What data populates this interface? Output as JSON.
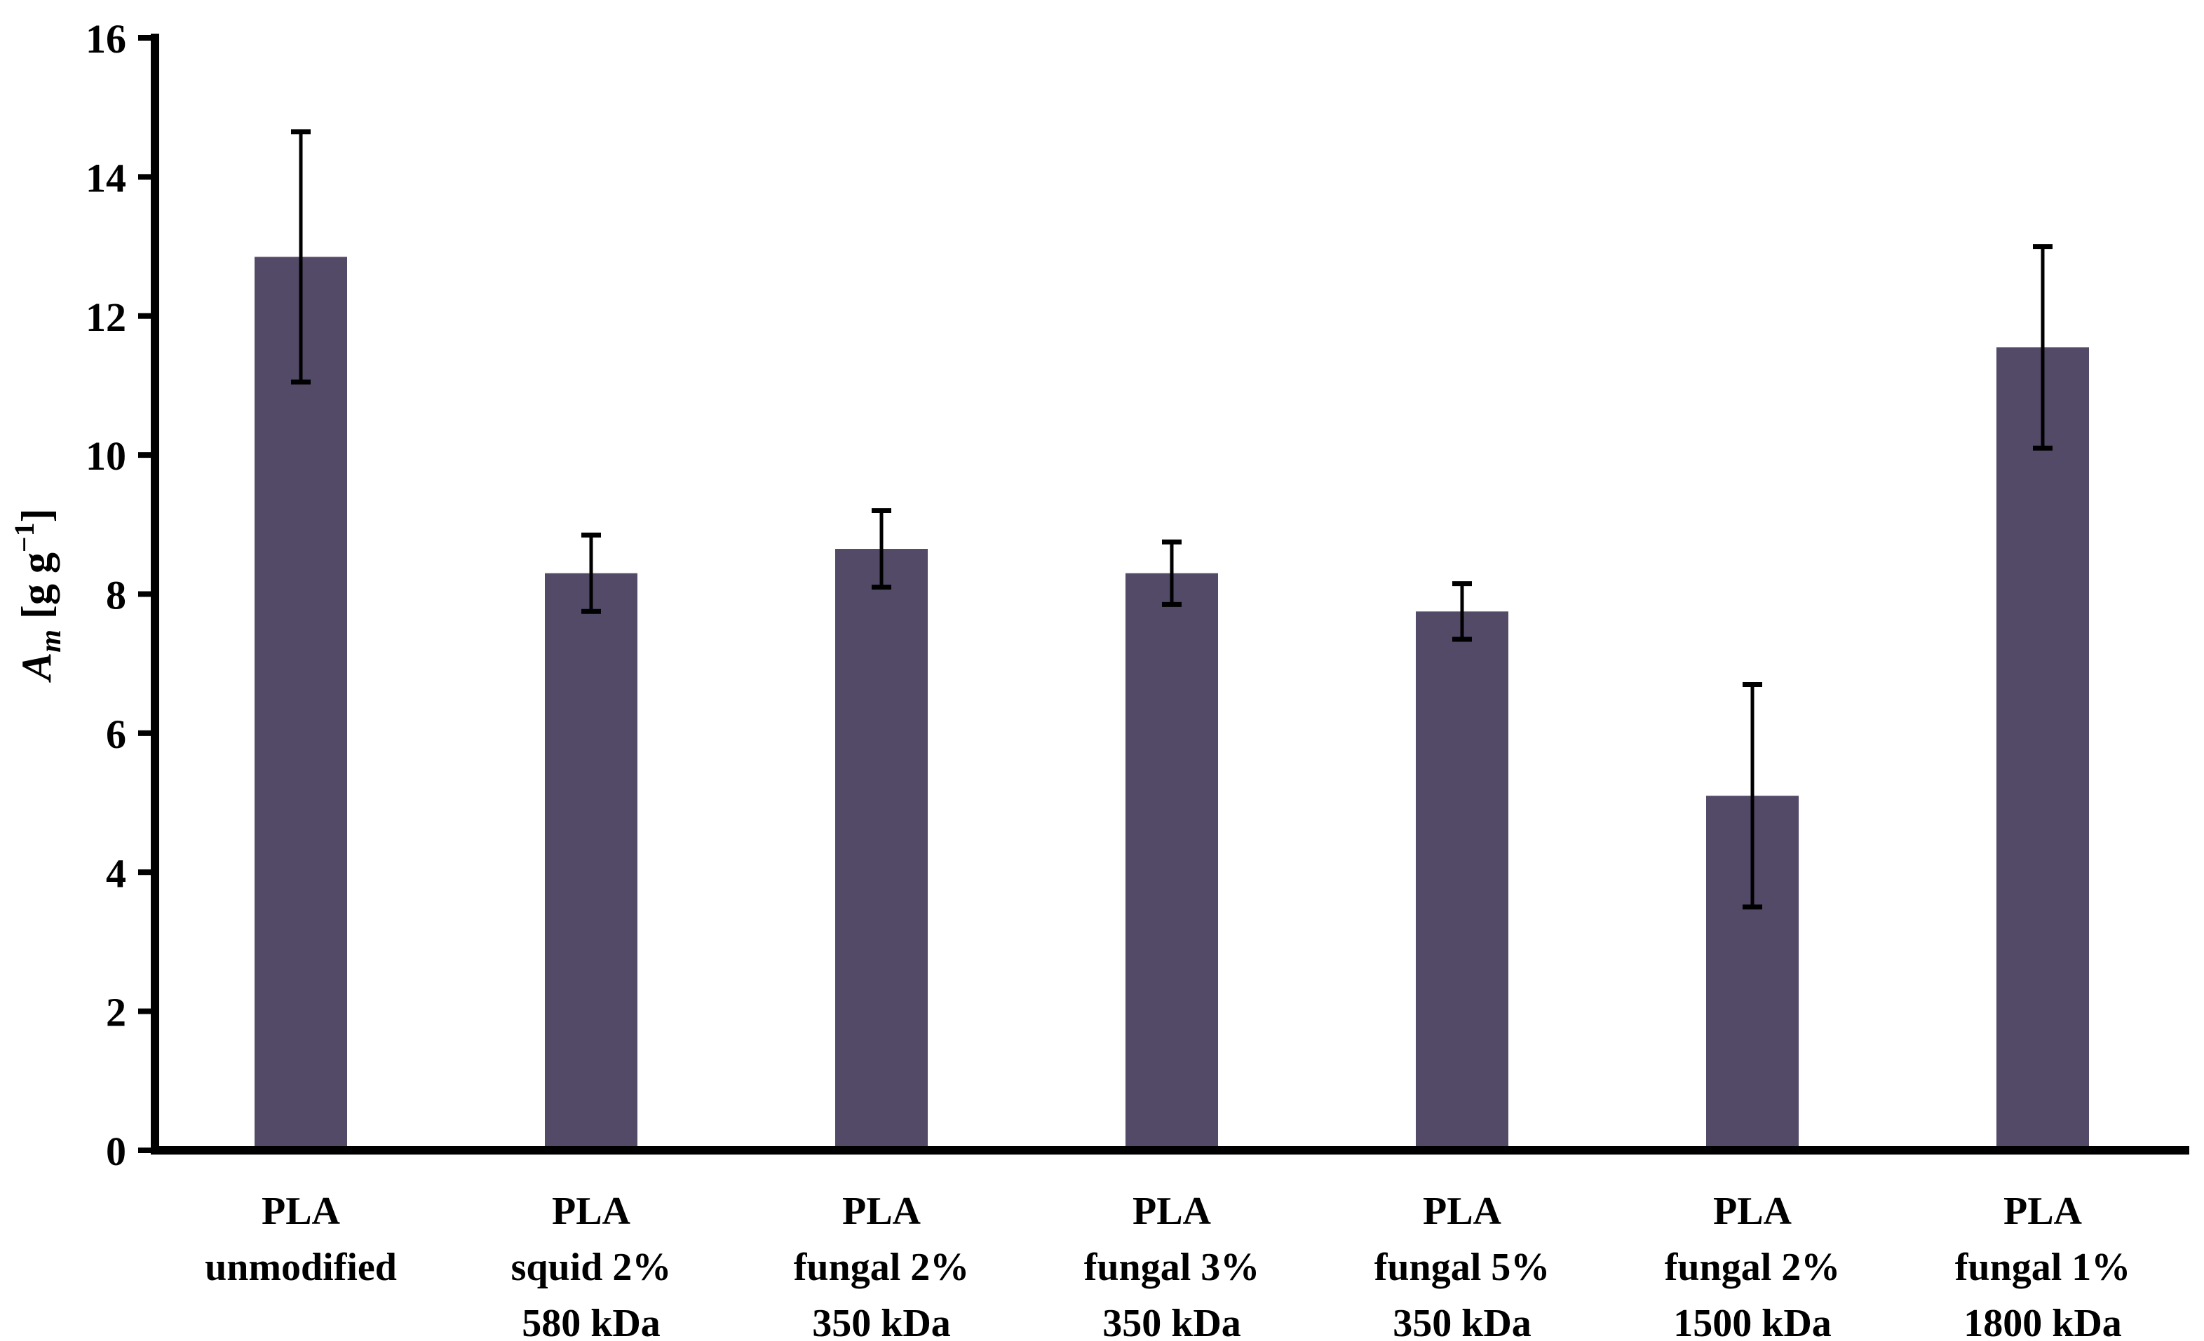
{
  "chart_data": {
    "type": "bar",
    "title": "",
    "xlabel": "",
    "ylabel": {
      "plain": "Am [g g-1]",
      "symbol": "A",
      "symbol_sub": "m",
      "unit_prefix": " [g g",
      "unit_sup": "−1",
      "unit_suffix": "]"
    },
    "ylim": [
      0,
      16
    ],
    "yticks": [
      0,
      2,
      4,
      6,
      8,
      10,
      12,
      14,
      16
    ],
    "grid": false,
    "legend": "none",
    "bar_color": "#534A68",
    "axis_color": "#000000",
    "error_bar_color": "#000000",
    "categories": [
      {
        "label_lines": [
          "PLA",
          "unmodified"
        ]
      },
      {
        "label_lines": [
          "PLA",
          "squid 2%",
          "580 kDa"
        ]
      },
      {
        "label_lines": [
          "PLA",
          "fungal 2%",
          "350 kDa"
        ]
      },
      {
        "label_lines": [
          "PLA",
          "fungal 3%",
          "350 kDa"
        ]
      },
      {
        "label_lines": [
          "PLA",
          "fungal 5%",
          "350 kDa"
        ]
      },
      {
        "label_lines": [
          "PLA",
          "fungal 2%",
          "1500 kDa"
        ]
      },
      {
        "label_lines": [
          "PLA",
          "fungal 1%",
          "1800 kDa"
        ]
      }
    ],
    "values": [
      12.85,
      8.3,
      8.65,
      8.3,
      7.75,
      5.1,
      11.55
    ],
    "errors": [
      1.8,
      0.55,
      0.55,
      0.45,
      0.4,
      1.6,
      1.45
    ]
  }
}
